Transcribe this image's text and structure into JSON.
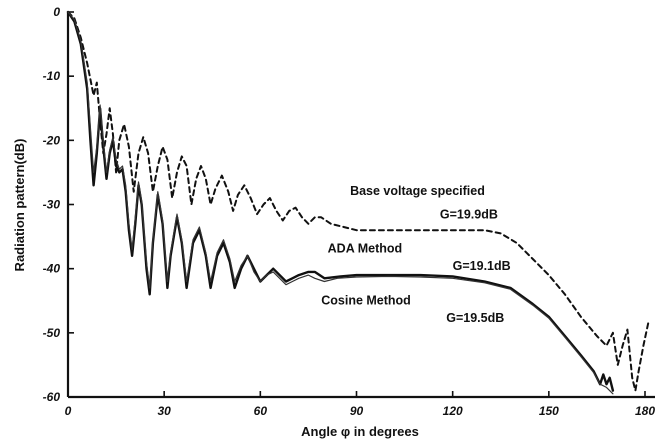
{
  "chart_data": {
    "type": "line",
    "title": "",
    "xlabel": "Angle φ in degrees",
    "ylabel": "Radiation pattern(dB)",
    "xlim": [
      0,
      180
    ],
    "ylim": [
      -60,
      0
    ],
    "x_ticks": [
      0,
      30,
      60,
      90,
      120,
      150,
      180
    ],
    "x_tick_labels": [
      "0",
      "30",
      "60",
      "90",
      "120",
      "150",
      "180"
    ],
    "y_ticks": [
      0,
      -10,
      -20,
      -30,
      -40,
      -50,
      -60
    ],
    "y_tick_labels": [
      "0",
      "-10",
      "-20",
      "-30",
      "-40",
      "-50",
      "-60"
    ],
    "grid": false,
    "legend": "none (curves labelled inline)",
    "annotations": [
      {
        "text": "Base voltage specified",
        "x": 88,
        "y": -28.5
      },
      {
        "text": "G=19.9dB",
        "x": 116,
        "y": -32.2
      },
      {
        "text": "ADA Method",
        "x": 81,
        "y": -37.5
      },
      {
        "text": "G=19.1dB",
        "x": 120,
        "y": -40.2
      },
      {
        "text": "Cosine Method",
        "x": 79,
        "y": -45.6
      },
      {
        "text": "G=19.5dB",
        "x": 118,
        "y": -48.3
      }
    ],
    "series": [
      {
        "name": "Base voltage specified",
        "style": "dashed",
        "points": [
          [
            0,
            0
          ],
          [
            2,
            -1
          ],
          [
            4,
            -4
          ],
          [
            6,
            -8
          ],
          [
            8,
            -13
          ],
          [
            9,
            -11
          ],
          [
            10,
            -17
          ],
          [
            11,
            -22
          ],
          [
            12,
            -19
          ],
          [
            13,
            -15
          ],
          [
            14,
            -19
          ],
          [
            15,
            -25
          ],
          [
            16,
            -20
          ],
          [
            17.5,
            -17.5
          ],
          [
            19,
            -21
          ],
          [
            20.5,
            -28
          ],
          [
            22,
            -22
          ],
          [
            23.5,
            -19.5
          ],
          [
            25,
            -22
          ],
          [
            26.5,
            -28
          ],
          [
            28,
            -24
          ],
          [
            29.5,
            -21
          ],
          [
            31,
            -23
          ],
          [
            32.5,
            -29
          ],
          [
            34,
            -25
          ],
          [
            35.5,
            -22.5
          ],
          [
            37,
            -24
          ],
          [
            38.5,
            -30
          ],
          [
            40,
            -26
          ],
          [
            41.5,
            -24
          ],
          [
            43,
            -26
          ],
          [
            44.5,
            -30
          ],
          [
            46,
            -27.5
          ],
          [
            48,
            -25.5
          ],
          [
            50,
            -28
          ],
          [
            51.5,
            -31
          ],
          [
            53,
            -28.5
          ],
          [
            55,
            -27
          ],
          [
            57,
            -29
          ],
          [
            59,
            -31.5
          ],
          [
            61,
            -30
          ],
          [
            63,
            -29
          ],
          [
            65,
            -31
          ],
          [
            67,
            -32.5
          ],
          [
            69,
            -31
          ],
          [
            71,
            -30.5
          ],
          [
            73,
            -32
          ],
          [
            75,
            -33
          ],
          [
            77,
            -32
          ],
          [
            79,
            -32
          ],
          [
            82,
            -33
          ],
          [
            86,
            -33.5
          ],
          [
            90,
            -34
          ],
          [
            96,
            -34
          ],
          [
            105,
            -34
          ],
          [
            115,
            -34
          ],
          [
            125,
            -34
          ],
          [
            130,
            -34
          ],
          [
            135,
            -34.5
          ],
          [
            140,
            -36
          ],
          [
            145,
            -38.5
          ],
          [
            150,
            -41
          ],
          [
            155,
            -44
          ],
          [
            160,
            -47.5
          ],
          [
            165,
            -50.5
          ],
          [
            168,
            -52
          ],
          [
            170,
            -50
          ],
          [
            171.5,
            -55
          ],
          [
            173,
            -52
          ],
          [
            174.5,
            -49.5
          ],
          [
            176,
            -57
          ],
          [
            177,
            -59
          ],
          [
            178,
            -56
          ],
          [
            179.5,
            -52
          ],
          [
            181,
            -48.5
          ]
        ]
      },
      {
        "name": "ADA Method",
        "style": "solid",
        "points": [
          [
            0,
            0
          ],
          [
            2,
            -1.5
          ],
          [
            4,
            -5
          ],
          [
            6,
            -12
          ],
          [
            7,
            -20
          ],
          [
            8,
            -27
          ],
          [
            9,
            -22
          ],
          [
            10,
            -15
          ],
          [
            11,
            -21
          ],
          [
            12,
            -26
          ],
          [
            13,
            -22
          ],
          [
            14,
            -20
          ],
          [
            15,
            -24
          ],
          [
            16,
            -25
          ],
          [
            17,
            -24.5
          ],
          [
            18,
            -28
          ],
          [
            19,
            -34
          ],
          [
            20,
            -38
          ],
          [
            21,
            -33
          ],
          [
            22,
            -27
          ],
          [
            23,
            -30
          ],
          [
            24.5,
            -40
          ],
          [
            25.5,
            -44
          ],
          [
            26.5,
            -36
          ],
          [
            28,
            -28.5
          ],
          [
            29.5,
            -33
          ],
          [
            31,
            -43
          ],
          [
            32,
            -38
          ],
          [
            34,
            -32
          ],
          [
            35.5,
            -36
          ],
          [
            37,
            -43
          ],
          [
            39,
            -36
          ],
          [
            41,
            -34
          ],
          [
            43,
            -38
          ],
          [
            44.5,
            -43
          ],
          [
            46.5,
            -38
          ],
          [
            48.5,
            -36
          ],
          [
            50.5,
            -39
          ],
          [
            52,
            -43
          ],
          [
            54,
            -40
          ],
          [
            56,
            -38
          ],
          [
            58,
            -40
          ],
          [
            60,
            -42
          ],
          [
            62,
            -41
          ],
          [
            64,
            -40
          ],
          [
            66,
            -41
          ],
          [
            68,
            -42
          ],
          [
            70,
            -41.5
          ],
          [
            72,
            -41
          ],
          [
            75,
            -40.5
          ],
          [
            77,
            -40.5
          ],
          [
            80,
            -41.5
          ],
          [
            85,
            -41.2
          ],
          [
            90,
            -41
          ],
          [
            100,
            -41
          ],
          [
            110,
            -41
          ],
          [
            120,
            -41.2
          ],
          [
            130,
            -42
          ],
          [
            138,
            -43
          ],
          [
            145,
            -45.5
          ],
          [
            150,
            -47.5
          ],
          [
            155,
            -50.5
          ],
          [
            160,
            -53.5
          ],
          [
            164,
            -56
          ],
          [
            166,
            -58
          ],
          [
            167,
            -56.5
          ],
          [
            168,
            -58
          ],
          [
            169,
            -57
          ],
          [
            170,
            -59
          ]
        ]
      },
      {
        "name": "Cosine Method",
        "style": "solid-thin",
        "points": [
          [
            0,
            0
          ],
          [
            2,
            -1.2
          ],
          [
            4,
            -4.5
          ],
          [
            6,
            -11
          ],
          [
            7,
            -18
          ],
          [
            8,
            -25
          ],
          [
            9,
            -21
          ],
          [
            10,
            -14.5
          ],
          [
            11,
            -20
          ],
          [
            12,
            -25
          ],
          [
            13,
            -21.5
          ],
          [
            14,
            -19.5
          ],
          [
            15,
            -23
          ],
          [
            16,
            -24.5
          ],
          [
            17,
            -24
          ],
          [
            18,
            -27
          ],
          [
            19,
            -33
          ],
          [
            20,
            -37
          ],
          [
            21,
            -32
          ],
          [
            22,
            -26.5
          ],
          [
            23,
            -29.5
          ],
          [
            24.5,
            -39
          ],
          [
            25.5,
            -43
          ],
          [
            26.5,
            -35.5
          ],
          [
            28,
            -28
          ],
          [
            29.5,
            -32.5
          ],
          [
            31,
            -42
          ],
          [
            32,
            -37.5
          ],
          [
            34,
            -31.5
          ],
          [
            35.5,
            -35.5
          ],
          [
            37,
            -42
          ],
          [
            39,
            -35.5
          ],
          [
            41,
            -33.5
          ],
          [
            43,
            -37.5
          ],
          [
            44.5,
            -42
          ],
          [
            46.5,
            -37.5
          ],
          [
            48.5,
            -35.5
          ],
          [
            50.5,
            -38.5
          ],
          [
            52,
            -42
          ],
          [
            54,
            -39.5
          ],
          [
            56,
            -38
          ],
          [
            58,
            -40.5
          ],
          [
            60,
            -42
          ],
          [
            62,
            -41
          ],
          [
            64,
            -40.5
          ],
          [
            66,
            -41.5
          ],
          [
            68,
            -42.5
          ],
          [
            70,
            -42
          ],
          [
            72,
            -41.5
          ],
          [
            75,
            -41
          ],
          [
            77,
            -41.5
          ],
          [
            80,
            -42
          ],
          [
            84,
            -41.5
          ],
          [
            90,
            -41.3
          ],
          [
            100,
            -41.2
          ],
          [
            110,
            -41.3
          ],
          [
            120,
            -41.5
          ],
          [
            130,
            -42.2
          ],
          [
            138,
            -43.2
          ],
          [
            145,
            -45.7
          ],
          [
            150,
            -47.7
          ],
          [
            155,
            -50.7
          ],
          [
            160,
            -53.7
          ],
          [
            164,
            -56.2
          ],
          [
            166,
            -58
          ],
          [
            168,
            -58.5
          ],
          [
            170,
            -59.5
          ]
        ]
      }
    ]
  }
}
